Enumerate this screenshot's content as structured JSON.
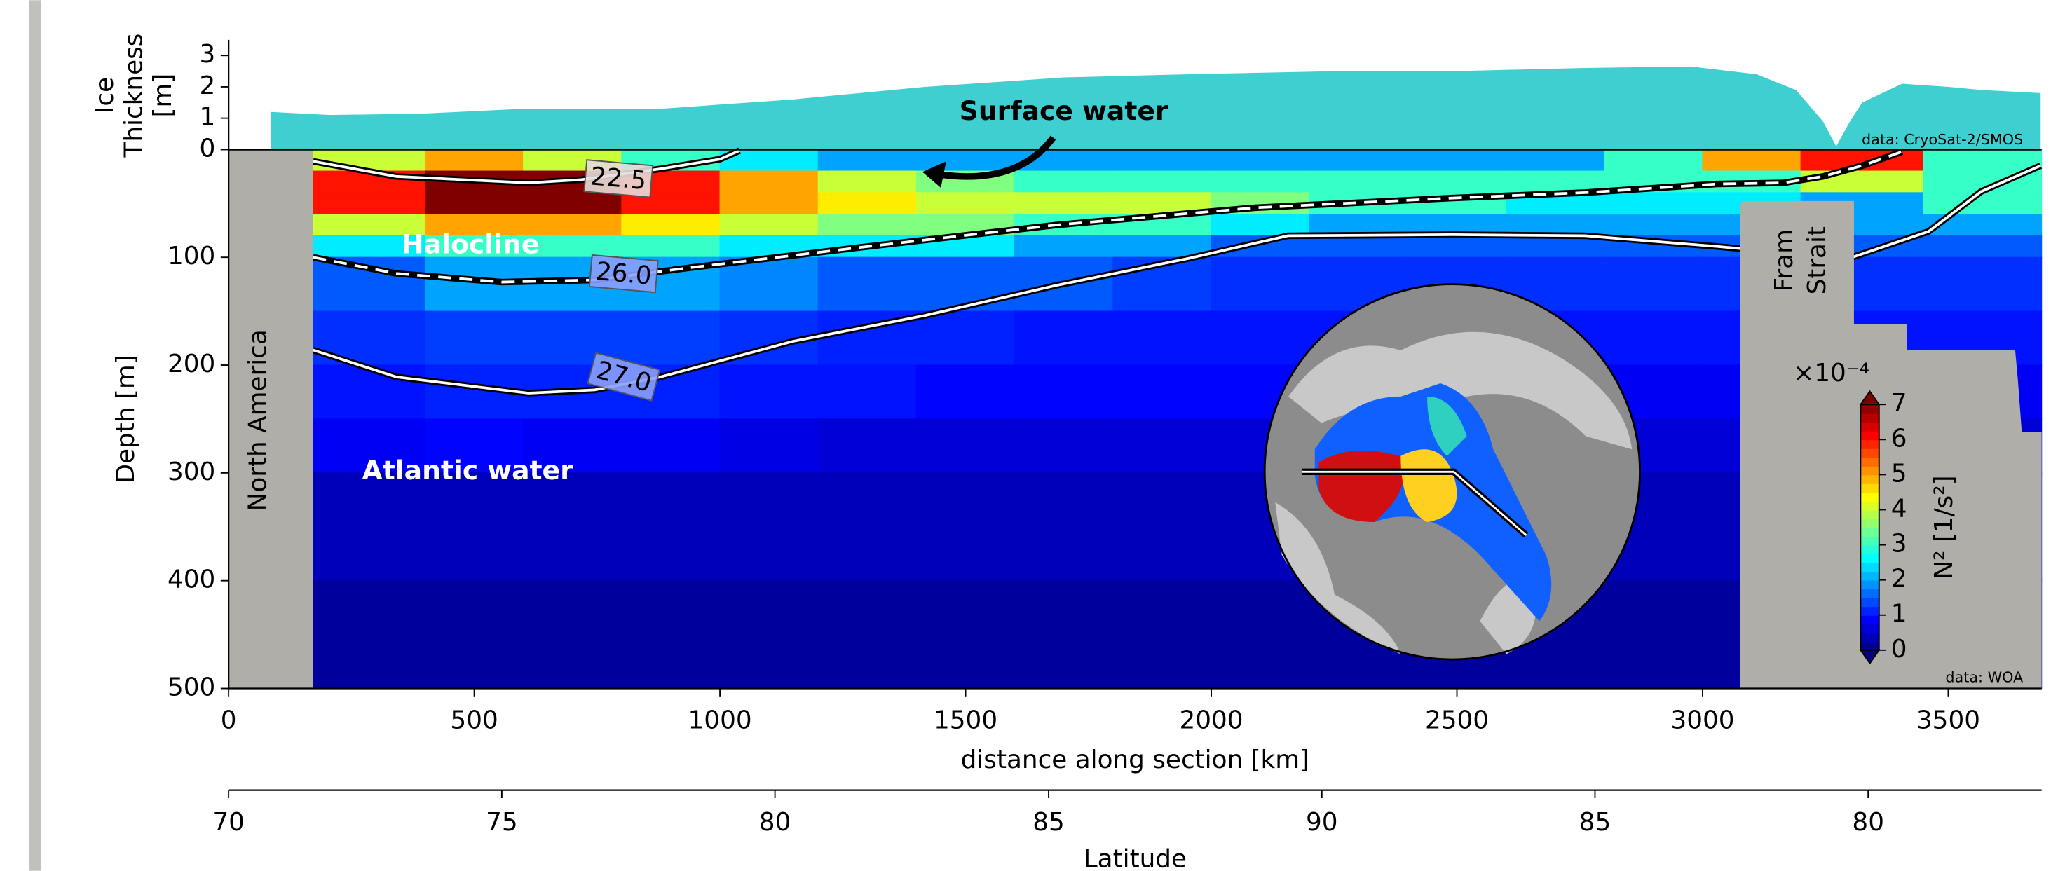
{
  "chart_data": [
    {
      "type": "area",
      "ylabel_lines": [
        "Ice",
        "Thickness",
        "[m]"
      ],
      "x": [
        86,
        207,
        400,
        600,
        880,
        1150,
        1417,
        1700,
        1954,
        2250,
        2492,
        2750,
        2976,
        3110,
        3190,
        3245,
        3272,
        3300,
        3325,
        3406,
        3500,
        3567,
        3688
      ],
      "values": [
        1.2,
        1.1,
        1.15,
        1.3,
        1.3,
        1.6,
        2.0,
        2.3,
        2.4,
        2.5,
        2.5,
        2.6,
        2.65,
        2.4,
        1.9,
        0.9,
        0.1,
        0.9,
        1.5,
        2.1,
        2.0,
        1.9,
        1.8
      ],
      "color": "#40cfd0",
      "xlim": [
        0,
        3690
      ],
      "ylim": [
        0,
        3.5
      ],
      "yticks": [
        0,
        1,
        2,
        3
      ],
      "annotation": "data: CryoSat-2/SMOS"
    },
    {
      "type": "contourf",
      "xlabel": "distance along section [km]",
      "ylabel": "Depth [m]",
      "xlim": [
        0,
        3690
      ],
      "ylim": [
        500,
        0
      ],
      "xticks": [
        0,
        500,
        1000,
        1500,
        2000,
        2500,
        3000,
        3500
      ],
      "yticks": [
        0,
        100,
        200,
        300,
        400,
        500
      ],
      "colormap": "jet",
      "x_edges": [
        172,
        400,
        600,
        800,
        1000,
        1200,
        1400,
        1600,
        1800,
        2000,
        2200,
        2400,
        2600,
        2800,
        3000,
        3200,
        3450,
        3690
      ],
      "depth_edges": [
        0,
        20,
        40,
        60,
        80,
        100,
        150,
        200,
        250,
        300,
        400,
        500
      ],
      "z": [
        [
          4,
          5,
          4,
          3,
          2.5,
          2,
          2,
          2,
          2,
          2,
          2,
          2,
          2,
          3,
          5,
          6,
          3
        ],
        [
          6,
          7,
          7,
          6,
          5,
          4,
          3.5,
          3,
          3,
          3,
          3,
          3,
          3,
          3,
          3,
          4,
          3
        ],
        [
          6,
          7,
          7,
          6,
          5,
          4.5,
          4,
          4,
          4,
          3.5,
          3,
          3,
          2.5,
          2.5,
          2.5,
          2,
          3
        ],
        [
          4,
          5,
          5,
          4.5,
          4,
          3.5,
          3.5,
          3,
          3,
          2.5,
          2,
          2,
          2,
          2,
          2,
          2,
          2
        ],
        [
          2.5,
          3,
          3,
          3,
          2.5,
          2.5,
          2.5,
          2,
          2,
          1.5,
          1.5,
          1.5,
          1.5,
          1.5,
          1.5,
          1.5,
          1.5
        ],
        [
          1.5,
          2,
          2,
          2,
          1.8,
          1.5,
          1.5,
          1.5,
          1.3,
          1.2,
          1.2,
          1.2,
          1.2,
          1.2,
          1.2,
          1.2,
          1.2
        ],
        [
          1.2,
          1.3,
          1.3,
          1.3,
          1.2,
          1.1,
          1.1,
          1,
          1,
          1,
          1,
          1,
          1,
          1,
          1,
          1,
          1
        ],
        [
          1,
          1.1,
          1.1,
          1.1,
          1,
          1,
          0.9,
          0.9,
          0.9,
          0.9,
          0.8,
          0.8,
          0.8,
          0.8,
          0.8,
          0.8,
          0.8
        ],
        [
          0.8,
          0.9,
          0.8,
          0.8,
          0.7,
          0.6,
          0.6,
          0.6,
          0.6,
          0.6,
          0.6,
          0.6,
          0.6,
          0.6,
          0.6,
          0.6,
          0.6
        ],
        [
          0.4,
          0.4,
          0.4,
          0.4,
          0.4,
          0.4,
          0.4,
          0.4,
          0.4,
          0.4,
          0.4,
          0.4,
          0.4,
          0.4,
          0.4,
          0.4,
          0.4
        ],
        [
          0.2,
          0.2,
          0.2,
          0.2,
          0.2,
          0.2,
          0.2,
          0.2,
          0.2,
          0.2,
          0.2,
          0.2,
          0.2,
          0.2,
          0.2,
          0.2,
          0.2
        ]
      ],
      "contours": [
        {
          "level": {
            "value": 22.5,
            "label": "22.5"
          },
          "style": "solid",
          "x": [
            172,
            341,
            610,
            718,
            879,
            1000,
            1040
          ],
          "depth": [
            11,
            25,
            31,
            28,
            18,
            9,
            1
          ]
        },
        {
          "level": {
            "value": 26.0,
            "label": "26.0"
          },
          "style": "dashed",
          "x": [
            172,
            341,
            556,
            745,
            933,
            1282,
            1685,
            2089,
            2492,
            2761,
            3030,
            3164,
            3245,
            3325,
            3406
          ],
          "depth": [
            100,
            115,
            123,
            121,
            110,
            91,
            70,
            54,
            45,
            40,
            32,
            31,
            25,
            15,
            2
          ]
        },
        {
          "level": {
            "value": 27.0,
            "label": "27.0"
          },
          "style": "solid",
          "x": [
            172,
            341,
            610,
            745,
            879,
            1148,
            1417,
            1685,
            1954,
            2156,
            2492,
            2761,
            3030,
            3298,
            3460,
            3567,
            3688
          ],
          "depth": [
            186,
            211,
            226,
            223,
            211,
            178,
            154,
            126,
            101,
            80,
            79,
            80,
            90,
            101,
            76,
            39,
            15
          ]
        }
      ],
      "annotations": {
        "surface": "Surface water",
        "halocline": "Halocline",
        "atlantic": "Atlantic water",
        "source": "data: WOA"
      },
      "land_labels": {
        "west": "North America",
        "east_lines": [
          "Fram",
          "Strait"
        ]
      },
      "colorbar": {
        "label": "N² [1/s²]",
        "scale_label": "×10⁻⁴",
        "lim": [
          0,
          7
        ],
        "ticks": [
          0,
          1,
          2,
          3,
          4,
          5,
          6,
          7
        ]
      }
    },
    {
      "type": "axis",
      "xlabel": "Latitude",
      "xlim": [
        0,
        3690
      ],
      "xticks": [
        {
          "value": 0,
          "label": "70"
        },
        {
          "value": 556,
          "label": "75"
        },
        {
          "value": 1112,
          "label": "80"
        },
        {
          "value": 1669,
          "label": "85"
        },
        {
          "value": 2225,
          "label": "90"
        },
        {
          "value": 2781,
          "label": "85"
        },
        {
          "value": 3337,
          "label": "80"
        }
      ]
    }
  ]
}
